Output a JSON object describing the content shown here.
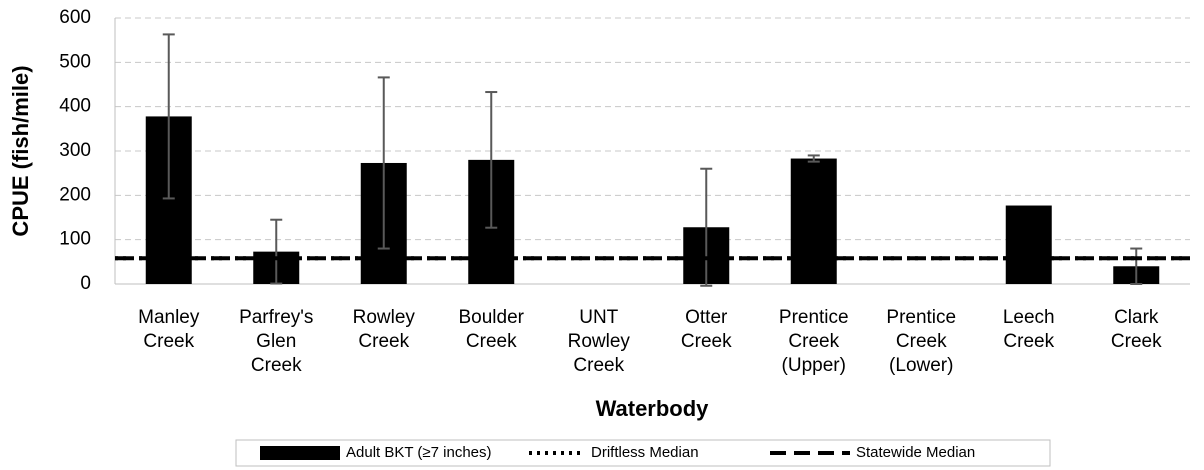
{
  "chart_data": {
    "type": "bar",
    "y_label": "CPUE (fish/mile)",
    "x_label": "Waterbody",
    "categories": [
      [
        "Manley",
        "Creek"
      ],
      [
        "Parfrey's",
        "Glen",
        "Creek"
      ],
      [
        "Rowley",
        "Creek"
      ],
      [
        "Boulder",
        "Creek"
      ],
      [
        "UNT",
        "Rowley",
        "Creek"
      ],
      [
        "Otter",
        "Creek"
      ],
      [
        "Prentice",
        "Creek",
        "(Upper)"
      ],
      [
        "Prentice",
        "Creek",
        "(Lower)"
      ],
      [
        "Leech",
        "Creek"
      ],
      [
        "Clark",
        "Creek"
      ]
    ],
    "series": [
      {
        "name": "Adult BKT (≥7 inches)",
        "color": "#000000",
        "values": [
          378,
          73,
          273,
          280,
          null,
          128,
          283,
          null,
          177,
          40
        ],
        "errors": [
          185,
          72,
          193,
          153,
          null,
          132,
          7,
          null,
          null,
          40
        ],
        "error_color": "#595959"
      },
      {
        "name": "Driftless Median",
        "color": "#000000",
        "value": 58,
        "style": "dotted"
      },
      {
        "name": "Statewide Median",
        "color": "#000000",
        "value": 58,
        "style": "dashed"
      }
    ],
    "ylim": [
      0,
      600
    ],
    "yticks": [
      0,
      100,
      200,
      300,
      400,
      500,
      600
    ],
    "grid": true
  }
}
